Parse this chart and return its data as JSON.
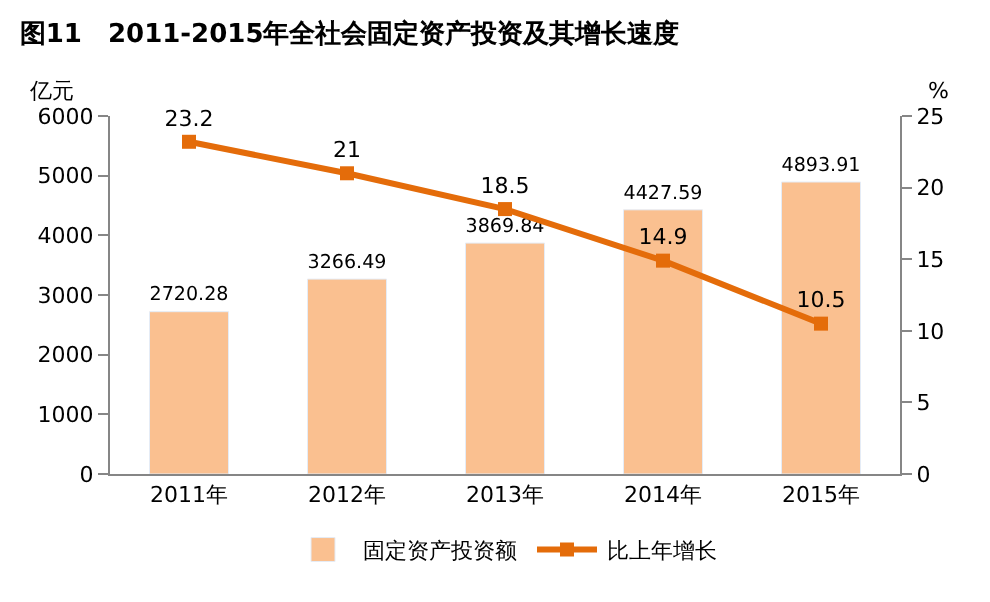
{
  "chart_data": {
    "type": "bar",
    "title": "图11　2011-2015年全社会固定资产投资及其增长速度",
    "categories": [
      "2011年",
      "2012年",
      "2013年",
      "2014年",
      "2015年"
    ],
    "series": [
      {
        "name": "固定资产投资额",
        "color": "#fac090",
        "values": [
          2720.28,
          3266.49,
          3869.84,
          4427.59,
          4893.91
        ]
      },
      {
        "name": "比上年增长",
        "type": "line",
        "axis": "y2",
        "color": "#e46c0a",
        "values": [
          23.2,
          21,
          18.5,
          14.9,
          10.5
        ]
      }
    ],
    "ylabel": "亿元",
    "y2label": "%",
    "ylim": [
      0,
      6000
    ],
    "yticks": [
      0,
      1000,
      2000,
      3000,
      4000,
      5000,
      6000
    ],
    "y2lim": [
      0,
      25
    ],
    "y2ticks": [
      0,
      5,
      10,
      15,
      20,
      25
    ],
    "data_labels": true,
    "marker": "square",
    "line_style": "solid",
    "legend": "bottom"
  }
}
